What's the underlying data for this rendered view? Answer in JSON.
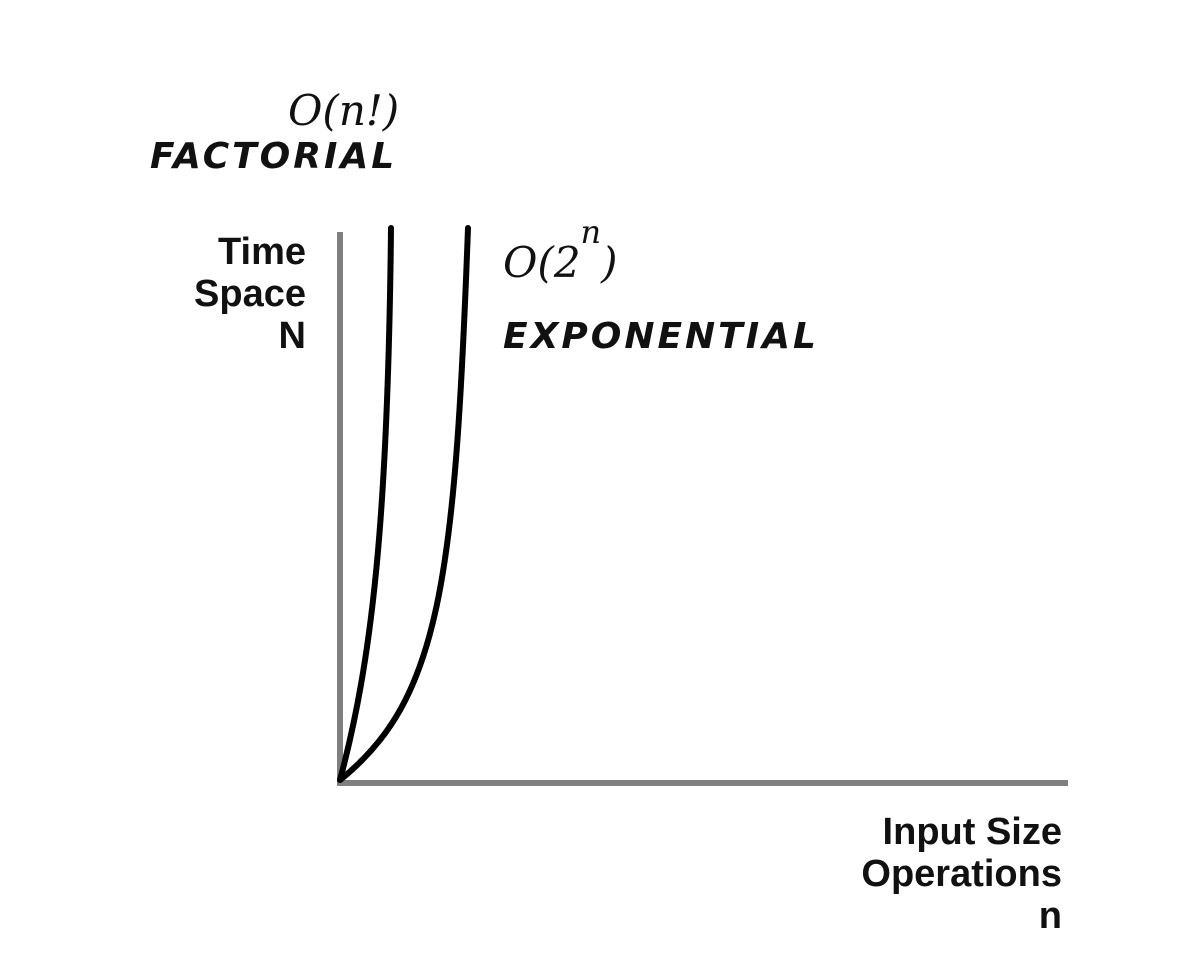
{
  "y_axis_labels": [
    "Time",
    "Space",
    "N"
  ],
  "x_axis_labels": [
    "Input Size",
    "Operations",
    "n"
  ],
  "curves": [
    {
      "id": "factorial",
      "notation_prefix": "O(n!)",
      "category": "FACTORIAL"
    },
    {
      "id": "exponential",
      "notation_prefix": "O(2",
      "notation_superscript": "n",
      "notation_suffix": ")",
      "category": "EXPONENTIAL"
    }
  ],
  "colors": {
    "axis": "#7f7f7f",
    "curve": "#000000",
    "text": "#111111"
  }
}
